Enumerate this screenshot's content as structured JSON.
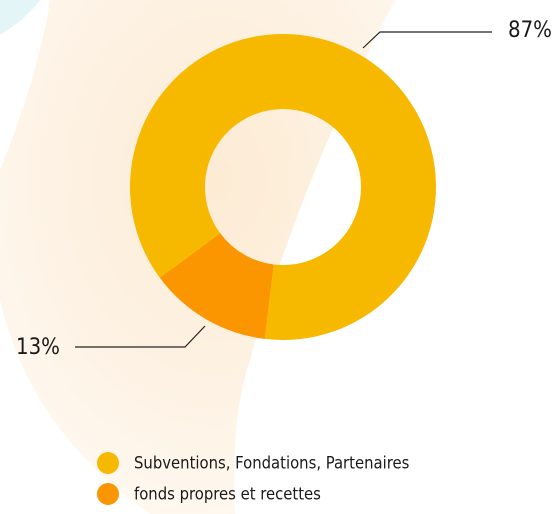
{
  "chart_data": {
    "type": "donut",
    "categories": [
      "Subventions, Fondations, Partenaires",
      "fonds propres et recettes"
    ],
    "values": [
      87,
      13
    ],
    "value_labels": [
      "87%",
      "13%"
    ],
    "colors": [
      "#f7b900",
      "#fb9500"
    ],
    "legend": "bottom"
  }
}
